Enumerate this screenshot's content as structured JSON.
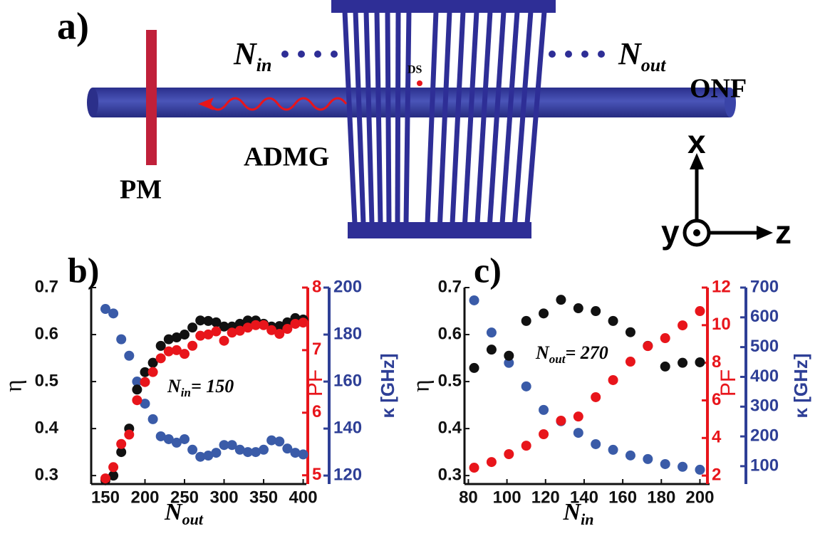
{
  "diagram": {
    "panel_label": "a)",
    "n_in": {
      "base": "N",
      "sub": "in"
    },
    "n_out": {
      "base": "N",
      "sub": "out"
    },
    "fiber": "ONF",
    "spot": "DS",
    "grating": "ADMG",
    "power_meter": "PM",
    "axes": {
      "x": "x",
      "y": "y",
      "z": "z"
    }
  },
  "chart_data": [
    {
      "type": "scatter",
      "panel_label": "b)",
      "x_label": {
        "base": "N",
        "sub": "out"
      },
      "annotation": {
        "base": "N",
        "sub": "in",
        "text": "= 150"
      },
      "y_label": "η",
      "y2_label": "PF",
      "y3_label": "κ [GHz]",
      "axis_colors": {
        "y": "#111111",
        "y2": "#e8151b",
        "y3": "#2e3f96"
      },
      "x": [
        150,
        160,
        170,
        180,
        190,
        200,
        210,
        220,
        230,
        240,
        250,
        260,
        270,
        280,
        290,
        300,
        310,
        320,
        330,
        340,
        350,
        360,
        370,
        380,
        390,
        400
      ],
      "xlim": [
        132,
        404
      ],
      "xticks": [
        150,
        200,
        250,
        300,
        350,
        400
      ],
      "ylim": [
        0.282,
        0.7
      ],
      "yticks": [
        0.3,
        0.4,
        0.5,
        0.6,
        0.7
      ],
      "y2lim": [
        4.86,
        8
      ],
      "y2ticks": [
        5,
        6,
        7,
        8
      ],
      "y3lim": [
        116.4,
        200
      ],
      "y3ticks": [
        120,
        140,
        160,
        180,
        200
      ],
      "series": [
        {
          "color": "#3a5ba8",
          "axis": "y3",
          "values": [
            190.9,
            189,
            178,
            171,
            160,
            150.6,
            144,
            136.7,
            135.5,
            134,
            135.5,
            131,
            128,
            128.5,
            129.7,
            133,
            133,
            131,
            130,
            130,
            131,
            135,
            134.5,
            131.5,
            129.7,
            129
          ]
        },
        {
          "color": "#111111",
          "axis": "y",
          "values": [
            0.29,
            0.3,
            0.35,
            0.4,
            0.483,
            0.52,
            0.54,
            0.576,
            0.59,
            0.594,
            0.6,
            0.615,
            0.63,
            0.629,
            0.626,
            0.617,
            0.617,
            0.623,
            0.63,
            0.63,
            0.623,
            0.617,
            0.618,
            0.626,
            0.635,
            0.632
          ]
        },
        {
          "color": "#e8151b",
          "axis": "y2",
          "values": [
            4.95,
            5.13,
            5.5,
            5.65,
            6.2,
            6.49,
            6.65,
            6.87,
            6.98,
            7.0,
            6.94,
            7.07,
            7.23,
            7.25,
            7.3,
            7.15,
            7.28,
            7.31,
            7.36,
            7.4,
            7.4,
            7.32,
            7.26,
            7.34,
            7.42,
            7.44
          ]
        }
      ]
    },
    {
      "type": "scatter",
      "panel_label": "c)",
      "x_label": {
        "base": "N",
        "sub": "in"
      },
      "annotation": {
        "base": "N",
        "sub": "out",
        "text": "= 270"
      },
      "y_label": "η",
      "y2_label": "PF",
      "y3_label": "κ [GHz]",
      "axis_colors": {
        "y": "#111111",
        "y2": "#e8151b",
        "y3": "#2e3f96"
      },
      "x": [
        83,
        92,
        101,
        110,
        119,
        128,
        137,
        146,
        155,
        164,
        173,
        182,
        191,
        200
      ],
      "xlim": [
        78,
        205
      ],
      "xticks": [
        80,
        100,
        120,
        140,
        160,
        180,
        200
      ],
      "ylim": [
        0.282,
        0.7
      ],
      "yticks": [
        0.3,
        0.4,
        0.5,
        0.6,
        0.7
      ],
      "y2lim": [
        1.55,
        12
      ],
      "y2ticks": [
        2,
        4,
        6,
        8,
        10,
        12
      ],
      "y3lim": [
        40,
        700
      ],
      "y3ticks": [
        100,
        200,
        300,
        400,
        500,
        600,
        700
      ],
      "series": [
        {
          "color": "#3a5ba8",
          "axis": "y3",
          "values": [
            657,
            549,
            447,
            368,
            289,
            251,
            212,
            174,
            155,
            136,
            124,
            107,
            98,
            88
          ]
        },
        {
          "color": "#111111",
          "axis": "y",
          "values": [
            0.529,
            0.568,
            0.555,
            0.629,
            0.645,
            0.674,
            0.656,
            0.65,
            0.629,
            0.605,
            0.576,
            0.532,
            0.54,
            0.541
          ]
        },
        {
          "color": "#e8151b",
          "axis": "y2",
          "values": [
            2.42,
            2.72,
            3.14,
            3.59,
            4.2,
            4.92,
            5.14,
            6.17,
            7.08,
            8.06,
            8.89,
            9.31,
            9.99,
            10.75
          ]
        }
      ]
    }
  ]
}
